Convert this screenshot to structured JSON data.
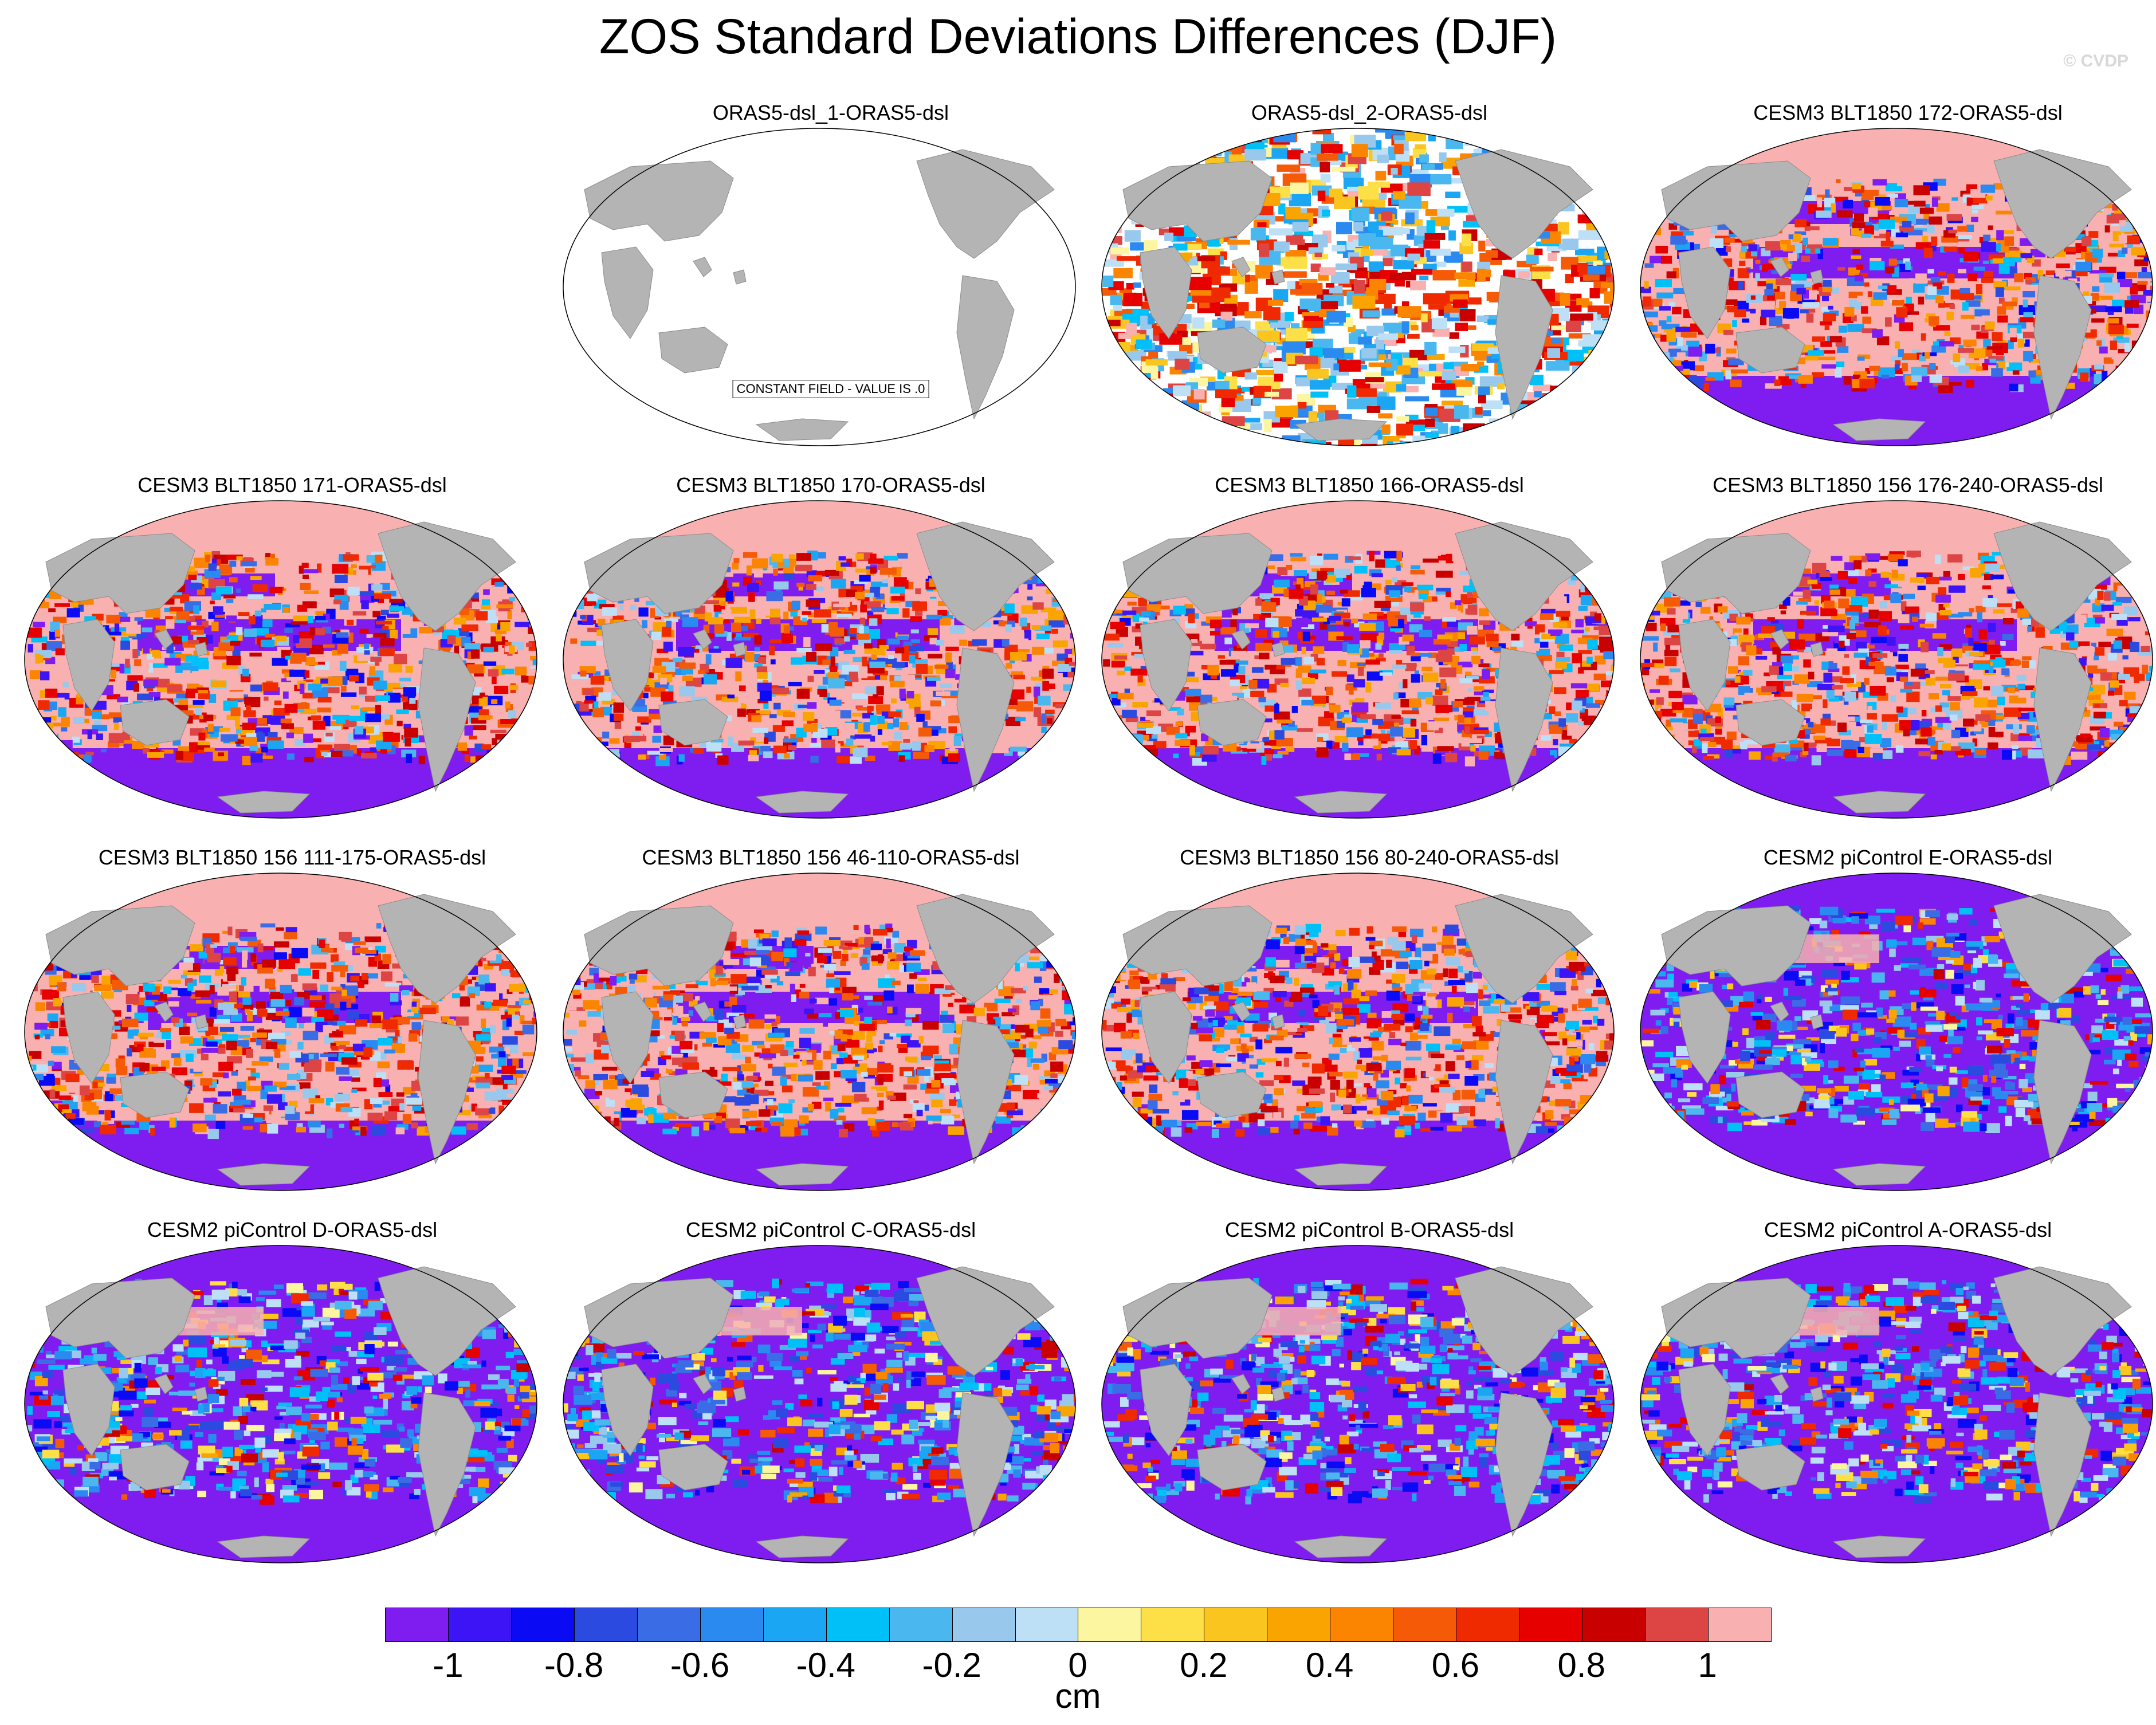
{
  "figure": {
    "title": "ZOS Standard Deviations Differences (DJF)",
    "credit": "© CVDP"
  },
  "panels": [
    {
      "title": "ORAS5-dsl_1-ORAS5-dsl",
      "pattern": "constant",
      "note": "CONSTANT FIELD - VALUE IS .0"
    },
    {
      "title": "ORAS5-dsl_2-ORAS5-dsl",
      "pattern": "mixed"
    },
    {
      "title": "CESM3 BLT1850 172-ORAS5-dsl",
      "pattern": "cesm3"
    },
    {
      "title": "CESM3 BLT1850 171-ORAS5-dsl",
      "pattern": "cesm3"
    },
    {
      "title": "CESM3 BLT1850 170-ORAS5-dsl",
      "pattern": "cesm3"
    },
    {
      "title": "CESM3 BLT1850 166-ORAS5-dsl",
      "pattern": "cesm3"
    },
    {
      "title": "CESM3 BLT1850 156 176-240-ORAS5-dsl",
      "pattern": "cesm3"
    },
    {
      "title": "CESM3 BLT1850 156 111-175-ORAS5-dsl",
      "pattern": "cesm3"
    },
    {
      "title": "CESM3 BLT1850 156 46-110-ORAS5-dsl",
      "pattern": "cesm3"
    },
    {
      "title": "CESM3 BLT1850 156 80-240-ORAS5-dsl",
      "pattern": "cesm3"
    },
    {
      "title": "CESM2 piControl E-ORAS5-dsl",
      "pattern": "cesm2"
    },
    {
      "title": "CESM2 piControl D-ORAS5-dsl",
      "pattern": "cesm2"
    },
    {
      "title": "CESM2 piControl C-ORAS5-dsl",
      "pattern": "cesm2"
    },
    {
      "title": "CESM2 piControl B-ORAS5-dsl",
      "pattern": "cesm2"
    },
    {
      "title": "CESM2 piControl A-ORAS5-dsl",
      "pattern": "cesm2"
    }
  ],
  "colorbar": {
    "units": "cm",
    "range": [
      -1.1,
      1.1
    ],
    "interval": 0.1,
    "tick_labels": [
      "-1",
      "-0.8",
      "-0.6",
      "-0.4",
      "-0.2",
      "0",
      "0.2",
      "0.4",
      "0.6",
      "0.8",
      "1"
    ],
    "tick_values": [
      -1,
      -0.8,
      -0.6,
      -0.4,
      -0.2,
      0,
      0.2,
      0.4,
      0.6,
      0.8,
      1
    ],
    "colors": [
      "#7f1cf0",
      "#3d14f5",
      "#0a0af5",
      "#2a4ae0",
      "#3a6ce6",
      "#2a8af0",
      "#1aa6f2",
      "#00c0f8",
      "#4ab8ee",
      "#98c8ec",
      "#bee0f6",
      "#fcf6a0",
      "#fde047",
      "#fbc520",
      "#f9a400",
      "#fb8500",
      "#f55b07",
      "#ef2a00",
      "#e60000",
      "#c80000",
      "#dd4444",
      "#f8b0b0"
    ]
  }
}
